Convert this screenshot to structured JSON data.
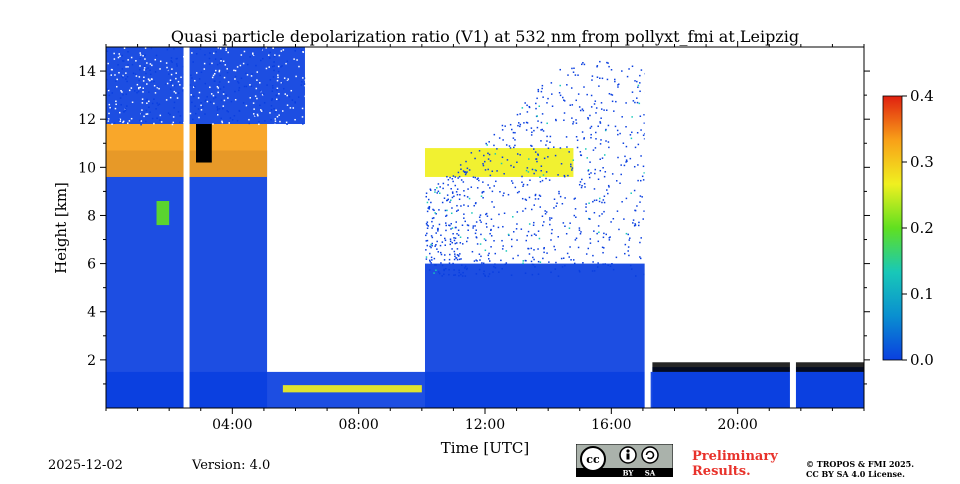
{
  "chart_data": {
    "type": "heatmap",
    "title": "Quasi particle depolarization ratio (V1) at 532 nm from pollyxt_fmi at Leipzig",
    "xlabel": "Time [UTC]",
    "ylabel": "Height [km]",
    "xlim_hours": [
      0,
      24
    ],
    "ylim_km": [
      0,
      15
    ],
    "x_ticks": [
      {
        "value": 4,
        "label": "04:00"
      },
      {
        "value": 8,
        "label": "08:00"
      },
      {
        "value": 12,
        "label": "12:00"
      },
      {
        "value": 16,
        "label": "16:00"
      },
      {
        "value": 20,
        "label": "20:00"
      }
    ],
    "y_ticks": [
      {
        "value": 2,
        "label": "2"
      },
      {
        "value": 4,
        "label": "4"
      },
      {
        "value": 6,
        "label": "6"
      },
      {
        "value": 8,
        "label": "8"
      },
      {
        "value": 10,
        "label": "10"
      },
      {
        "value": 12,
        "label": "12"
      },
      {
        "value": 14,
        "label": "14"
      }
    ],
    "colorbar": {
      "range": [
        0.0,
        0.4
      ],
      "ticks": [
        {
          "value": 0.0,
          "label": "0.0"
        },
        {
          "value": 0.1,
          "label": "0.1"
        },
        {
          "value": 0.2,
          "label": "0.2"
        },
        {
          "value": 0.3,
          "label": "0.3"
        },
        {
          "value": 0.4,
          "label": "0.4"
        }
      ],
      "colors": [
        "#0a3fe0",
        "#0a8fd0",
        "#18c8b8",
        "#60e020",
        "#f0f020",
        "#f8a018",
        "#e02010"
      ]
    },
    "regions": [
      {
        "name": "boundary-layer",
        "t0": 0,
        "t1": 24,
        "h0": 0,
        "h1": 1.5,
        "value": 0.0
      },
      {
        "name": "night-cloud-column",
        "t0": 0,
        "t1": 5.1,
        "h0": 0,
        "h1": 10.7,
        "value": 0.0
      },
      {
        "name": "upper-noise-early",
        "t0": 0,
        "t1": 6.3,
        "h0": 11.8,
        "h1": 15,
        "value": 0.0
      },
      {
        "name": "cirrus-band-early",
        "t0": 0,
        "t1": 5.1,
        "h0": 9.6,
        "h1": 11.8,
        "value": 0.35
      },
      {
        "name": "aerosol-streak",
        "t0": 1.6,
        "t1": 2.0,
        "h0": 7.6,
        "h1": 8.6,
        "value": 0.18
      },
      {
        "name": "thin-layer-morning",
        "t0": 5.6,
        "t1": 10.0,
        "h0": 0.65,
        "h1": 0.95,
        "value": 0.25
      },
      {
        "name": "afternoon-column",
        "t0": 10.1,
        "t1": 17.2,
        "h0": 0,
        "h1": 6.0,
        "value": 0.0
      },
      {
        "name": "mid-cirrus",
        "t0": 10.1,
        "t1": 14.8,
        "h0": 9.6,
        "h1": 10.8,
        "value": 0.3
      },
      {
        "name": "evening-clouds",
        "t0": 17.3,
        "t1": 24,
        "h0": 0,
        "h1": 1.7,
        "value": 0.0
      }
    ],
    "gaps_hours": [
      2.55,
      17.15,
      21.75
    ],
    "date": "2025-12-02",
    "version": "Version: 4.0"
  },
  "footer": {
    "date": "2025-12-02",
    "version": "Version: 4.0",
    "preliminary": "Preliminary Results.",
    "license_line1": "© TROPOS & FMI 2025.",
    "license_line2": "CC BY SA 4.0 License.",
    "cc_text": "cc",
    "cc_by": "BY",
    "cc_sa": "SA"
  },
  "colors": {
    "blue": "#0a3fe0",
    "black": "#000000"
  }
}
